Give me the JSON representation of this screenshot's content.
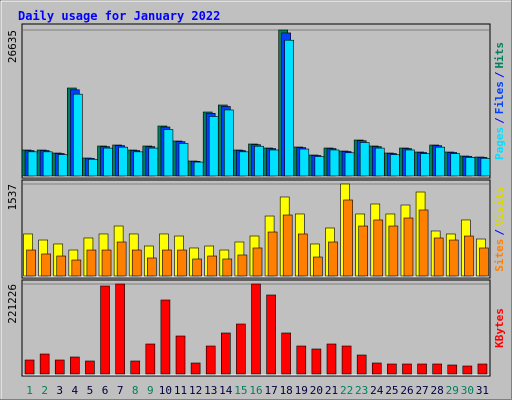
{
  "chart_data": [
    {
      "type": "bar",
      "title": "Daily usage for January 2022",
      "legend_separator": "/",
      "series": [
        {
          "name": "Hits",
          "color": "#00805c",
          "values": [
            4743,
            4743,
            4196,
            16054,
            3284,
            5473,
            5655,
            4743,
            5473,
            9121,
            6385,
            2736,
            11676,
            12953,
            4743,
            5838,
            5108,
            26635,
            5290,
            3831,
            5108,
            4561,
            6567,
            5473,
            4196,
            5108,
            4378,
            5655,
            4378,
            3649,
            3466
          ]
        },
        {
          "name": "Files",
          "color": "#0040ff",
          "values": [
            4650,
            4650,
            4110,
            15730,
            3220,
            5360,
            5540,
            4650,
            5360,
            8940,
            6260,
            2680,
            11440,
            12690,
            4650,
            5720,
            5010,
            26100,
            5180,
            3750,
            5010,
            4470,
            6440,
            5360,
            4110,
            5010,
            4290,
            5540,
            4290,
            3580,
            3400
          ]
        },
        {
          "name": "Pages",
          "color": "#00e0ff",
          "values": [
            4410,
            4410,
            3900,
            14930,
            3050,
            5090,
            5260,
            4410,
            5090,
            8480,
            5940,
            2540,
            10860,
            12050,
            4410,
            5430,
            4750,
            24770,
            4920,
            3560,
            4750,
            4240,
            6110,
            5090,
            3900,
            4750,
            4070,
            5260,
            4070,
            3390,
            3220
          ]
        }
      ],
      "ylim": [
        0,
        26635
      ],
      "yticks": [
        26635
      ]
    },
    {
      "type": "bar",
      "series": [
        {
          "name": "Visits",
          "color": "#ffff00",
          "values": [
            702,
            601,
            535,
            434,
            635,
            702,
            835,
            702,
            501,
            702,
            668,
            468,
            501,
            434,
            568,
            668,
            1002,
            1320,
            1036,
            535,
            802,
            1537,
            1036,
            1203,
            1036,
            1186,
            1403,
            752,
            702,
            936,
            618
          ]
        },
        {
          "name": "Sites",
          "color": "#ff8000",
          "values": [
            434,
            368,
            334,
            267,
            434,
            434,
            568,
            434,
            301,
            434,
            434,
            284,
            334,
            284,
            351,
            468,
            735,
            1019,
            702,
            317,
            568,
            1270,
            835,
            936,
            835,
            969,
            1103,
            635,
            601,
            668,
            468
          ]
        }
      ],
      "ylim": [
        0,
        1537
      ],
      "yticks": [
        1537
      ]
    },
    {
      "type": "bar",
      "categories": [
        "1",
        "2",
        "3",
        "4",
        "5",
        "6",
        "7",
        "8",
        "9",
        "10",
        "11",
        "12",
        "13",
        "14",
        "15",
        "16",
        "17",
        "18",
        "19",
        "20",
        "21",
        "22",
        "23",
        "24",
        "25",
        "26",
        "27",
        "28",
        "29",
        "30",
        "31"
      ],
      "category_colors": [
        "#00805c",
        "#00805c",
        "#000040",
        "#000040",
        "#000040",
        "#000040",
        "#000040",
        "#00805c",
        "#00805c",
        "#000040",
        "#000040",
        "#000040",
        "#000040",
        "#000040",
        "#00805c",
        "#00805c",
        "#000040",
        "#000040",
        "#000040",
        "#000040",
        "#000040",
        "#00805c",
        "#00805c",
        "#000040",
        "#000040",
        "#000040",
        "#000040",
        "#000040",
        "#00805c",
        "#00805c",
        "#000040"
      ],
      "series": [
        {
          "name": "KBytes",
          "color": "#ff0000",
          "values": [
            34413,
            49162,
            34413,
            41788,
            31955,
            216310,
            221226,
            31955,
            73742,
            181897,
            93406,
            27039,
            68826,
            100780,
            122903,
            221226,
            194188,
            100780,
            68826,
            61452,
            73742,
            68826,
            46703,
            27039,
            24581,
            24581,
            24581,
            24581,
            22123,
            19664,
            24581
          ]
        }
      ],
      "ylim": [
        0,
        221226
      ],
      "yticks": [
        221226
      ]
    }
  ]
}
